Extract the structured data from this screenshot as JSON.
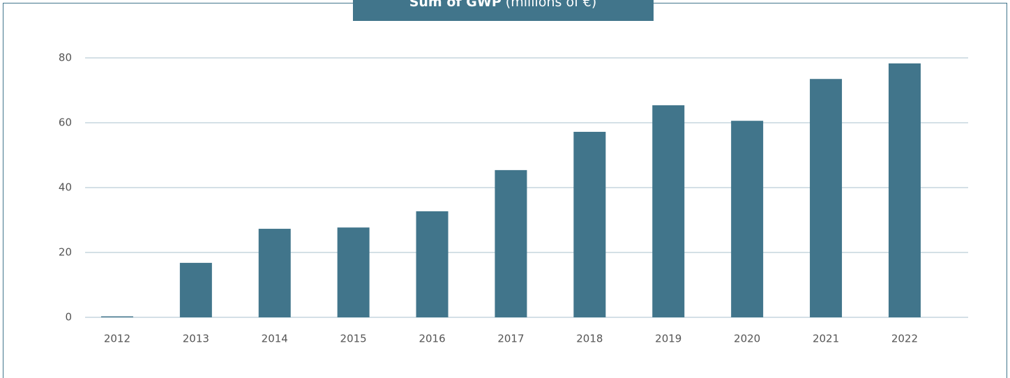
{
  "chart_data": {
    "type": "bar",
    "title": "Sum of GWP",
    "title_unit": "(millions of €)",
    "categories": [
      "2012",
      "2013",
      "2014",
      "2015",
      "2016",
      "2017",
      "2018",
      "2019",
      "2020",
      "2021",
      "2022"
    ],
    "values": [
      0.3,
      16.8,
      27.3,
      27.7,
      32.7,
      45.4,
      57.2,
      65.4,
      60.6,
      73.5,
      78.3
    ],
    "color": "#41758b",
    "ylim": [
      0,
      80
    ],
    "yticks": [
      0,
      20,
      40,
      60,
      80
    ],
    "grid": true
  }
}
